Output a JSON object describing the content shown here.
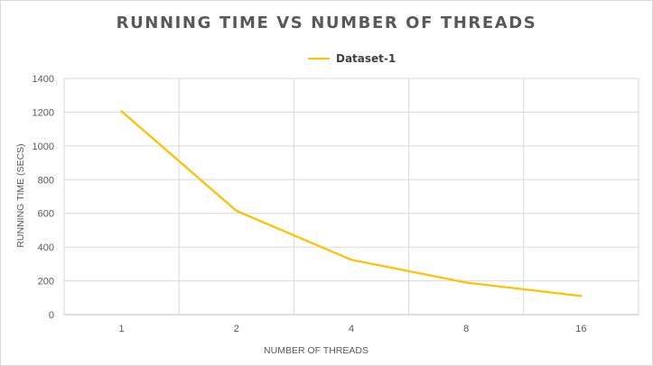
{
  "chart_data": {
    "type": "line",
    "title": "RUNNING TIME VS NUMBER OF THREADS",
    "xlabel": "NUMBER OF THREADS",
    "ylabel": "RUNNING TIME (SECS)",
    "categories": [
      "1",
      "2",
      "4",
      "8",
      "16"
    ],
    "series": [
      {
        "name": "Dataset-1",
        "values": [
          1205,
          615,
          325,
          190,
          110
        ],
        "color": "#ffc000"
      }
    ],
    "ylim": [
      0,
      1400
    ],
    "yticks": [
      "0",
      "200",
      "400",
      "600",
      "800",
      "1000",
      "1200",
      "1400"
    ],
    "grid": true,
    "legend_position": "top"
  }
}
